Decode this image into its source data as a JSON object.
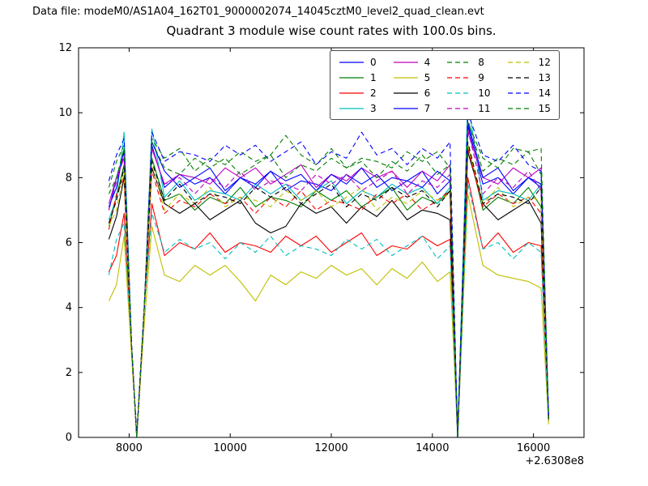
{
  "header": {
    "datafile_label": "Data file: modeM0/AS1A04_162T01_9000002074_14045cztM0_level2_quad_clean.evt"
  },
  "chart_data": {
    "type": "line",
    "title": "Quadrant 3 module wise count rates with 100.0s bins.",
    "xlabel": "",
    "ylabel": "",
    "x_offset_text": "+2.6308e8",
    "xlim": [
      7000,
      17000
    ],
    "ylim": [
      0,
      12
    ],
    "xticks": [
      8000,
      10000,
      12000,
      14000,
      16000
    ],
    "yticks": [
      0,
      2,
      4,
      6,
      8,
      10,
      12
    ],
    "grid": false,
    "legend_position": "upper right inside",
    "legend_columns": 4,
    "x": [
      7600,
      7750,
      7900,
      8050,
      8150,
      8300,
      8450,
      8700,
      9000,
      9300,
      9600,
      9900,
      10200,
      10500,
      10800,
      11100,
      11400,
      11700,
      12000,
      12300,
      12600,
      12900,
      13200,
      13500,
      13800,
      14100,
      14350,
      14500,
      14700,
      15000,
      15300,
      15600,
      15900,
      16150,
      16300
    ],
    "series": [
      {
        "name": "0",
        "color": "#0000ff",
        "linestyle": "solid",
        "values": [
          7.0,
          8.0,
          8.8,
          2.8,
          0.02,
          4.0,
          9.0,
          7.7,
          8.1,
          7.8,
          8.0,
          7.5,
          8.0,
          7.7,
          8.2,
          7.6,
          7.9,
          7.8,
          7.6,
          8.1,
          7.8,
          8.1,
          7.6,
          7.9,
          8.2,
          7.5,
          7.9,
          0.02,
          9.6,
          7.8,
          8.0,
          7.5,
          8.0,
          7.7,
          0.6
        ]
      },
      {
        "name": "1",
        "color": "#007f00",
        "linestyle": "solid",
        "values": [
          6.5,
          7.4,
          8.4,
          2.8,
          0.02,
          4.0,
          8.6,
          7.3,
          7.5,
          7.0,
          7.4,
          7.2,
          7.7,
          7.1,
          7.4,
          7.3,
          7.1,
          7.6,
          7.3,
          7.6,
          7.1,
          7.4,
          7.7,
          7.0,
          7.4,
          7.2,
          7.6,
          0.02,
          9.0,
          7.0,
          7.4,
          7.2,
          7.7,
          7.1,
          0.5
        ]
      },
      {
        "name": "2",
        "color": "#ff0000",
        "linestyle": "solid",
        "values": [
          5.1,
          5.6,
          6.9,
          2.8,
          0.02,
          4.0,
          7.2,
          5.6,
          6.0,
          5.8,
          6.3,
          5.7,
          6.0,
          5.9,
          5.7,
          6.2,
          5.9,
          6.2,
          5.7,
          6.0,
          6.3,
          5.6,
          5.9,
          5.8,
          6.2,
          5.9,
          6.1,
          0.02,
          8.0,
          5.8,
          6.3,
          5.7,
          6.0,
          5.9,
          0.5
        ]
      },
      {
        "name": "3",
        "color": "#00bfbf",
        "linestyle": "solid",
        "values": [
          6.7,
          7.4,
          9.4,
          2.8,
          0.02,
          4.0,
          9.5,
          7.4,
          7.9,
          7.3,
          7.6,
          7.5,
          7.3,
          7.8,
          7.5,
          7.8,
          7.3,
          7.6,
          7.9,
          7.2,
          7.6,
          7.4,
          7.8,
          7.5,
          7.7,
          7.2,
          7.7,
          0.02,
          10.4,
          7.3,
          7.6,
          7.5,
          7.3,
          7.8,
          0.6
        ]
      },
      {
        "name": "4",
        "color": "#bf00bf",
        "linestyle": "solid",
        "values": [
          7.2,
          8.0,
          8.6,
          2.8,
          0.02,
          4.0,
          8.9,
          7.8,
          8.1,
          8.0,
          7.8,
          8.3,
          8.0,
          8.3,
          7.8,
          8.1,
          8.4,
          7.7,
          8.1,
          7.9,
          8.3,
          8.0,
          8.2,
          7.7,
          8.2,
          7.9,
          8.4,
          0.02,
          9.4,
          8.0,
          7.8,
          8.3,
          8.0,
          8.3,
          0.6
        ]
      },
      {
        "name": "5",
        "color": "#bfbf00",
        "linestyle": "solid",
        "values": [
          4.2,
          4.7,
          6.2,
          2.5,
          0.02,
          3.5,
          6.5,
          5.0,
          4.8,
          5.3,
          5.0,
          5.3,
          4.8,
          4.2,
          5.0,
          4.7,
          5.1,
          4.9,
          5.3,
          5.0,
          5.2,
          4.7,
          5.2,
          4.9,
          5.4,
          4.8,
          5.1,
          0.02,
          7.5,
          5.3,
          5.0,
          4.9,
          4.8,
          4.6,
          0.4
        ]
      },
      {
        "name": "6",
        "color": "#000000",
        "linestyle": "solid",
        "values": [
          6.1,
          6.8,
          8.0,
          2.8,
          0.02,
          4.0,
          8.3,
          7.2,
          6.9,
          7.2,
          6.7,
          7.0,
          7.3,
          6.6,
          6.3,
          6.5,
          7.2,
          6.9,
          7.1,
          6.6,
          7.1,
          6.8,
          7.3,
          6.7,
          7.0,
          6.9,
          6.7,
          0.02,
          8.8,
          7.2,
          6.7,
          7.0,
          7.3,
          6.6,
          0.5
        ]
      },
      {
        "name": "7",
        "color": "#0000ff",
        "linestyle": "solid",
        "values": [
          7.1,
          7.7,
          8.9,
          2.8,
          0.02,
          4.0,
          9.1,
          8.2,
          7.7,
          8.0,
          8.3,
          7.6,
          8.0,
          7.8,
          8.2,
          7.9,
          8.1,
          7.6,
          8.1,
          7.8,
          8.3,
          7.7,
          8.0,
          7.9,
          7.7,
          8.2,
          7.9,
          0.02,
          9.7,
          8.0,
          8.3,
          7.6,
          8.0,
          7.8,
          0.6
        ]
      },
      {
        "name": "8",
        "color": "#007f00",
        "linestyle": "dashed",
        "values": [
          7.7,
          8.5,
          9.0,
          2.8,
          0.02,
          4.0,
          9.2,
          8.6,
          8.9,
          8.2,
          8.6,
          8.4,
          8.8,
          8.5,
          8.7,
          9.3,
          8.7,
          8.4,
          8.9,
          8.3,
          8.6,
          8.5,
          8.3,
          8.8,
          8.5,
          8.8,
          8.3,
          0.02,
          9.8,
          8.2,
          8.6,
          8.4,
          8.8,
          8.1,
          0.7
        ]
      },
      {
        "name": "9",
        "color": "#ff0000",
        "linestyle": "dashed",
        "values": [
          6.4,
          7.5,
          8.0,
          2.8,
          0.02,
          4.0,
          8.2,
          6.9,
          7.3,
          7.1,
          7.5,
          7.2,
          7.4,
          6.9,
          7.4,
          7.1,
          7.6,
          7.0,
          7.3,
          7.2,
          7.0,
          7.5,
          7.2,
          7.5,
          7.0,
          7.3,
          7.6,
          0.02,
          8.9,
          7.1,
          7.5,
          7.2,
          7.4,
          6.9,
          0.5
        ]
      },
      {
        "name": "10",
        "color": "#00bfbf",
        "linestyle": "dashed",
        "values": [
          5.0,
          6.1,
          6.6,
          2.8,
          0.02,
          4.0,
          6.9,
          5.7,
          6.1,
          5.8,
          6.0,
          5.5,
          6.0,
          5.7,
          6.2,
          5.6,
          5.9,
          5.8,
          5.6,
          6.1,
          5.8,
          6.1,
          5.6,
          5.9,
          6.2,
          5.5,
          5.9,
          0.02,
          7.8,
          5.8,
          6.0,
          5.5,
          6.0,
          5.7,
          0.4
        ]
      },
      {
        "name": "11",
        "color": "#bf00bf",
        "linestyle": "dashed",
        "values": [
          7.0,
          7.9,
          8.7,
          2.8,
          0.02,
          4.0,
          8.9,
          7.8,
          8.0,
          7.5,
          8.0,
          7.7,
          8.2,
          7.6,
          7.9,
          7.8,
          7.6,
          8.1,
          7.8,
          8.1,
          7.6,
          7.9,
          8.2,
          7.5,
          7.9,
          7.7,
          8.1,
          0.02,
          9.5,
          7.5,
          8.0,
          7.7,
          8.2,
          7.6,
          0.6
        ]
      },
      {
        "name": "12",
        "color": "#bfbf00",
        "linestyle": "dashed",
        "values": [
          6.5,
          7.0,
          8.2,
          2.8,
          0.02,
          4.0,
          8.4,
          7.0,
          7.5,
          7.2,
          7.7,
          7.1,
          7.4,
          7.3,
          7.1,
          7.6,
          7.3,
          7.6,
          7.1,
          7.4,
          7.7,
          7.0,
          7.4,
          7.2,
          7.6,
          7.3,
          7.5,
          0.02,
          9.0,
          7.2,
          7.7,
          7.1,
          7.4,
          7.3,
          0.5
        ]
      },
      {
        "name": "13",
        "color": "#000000",
        "linestyle": "dashed",
        "values": [
          6.6,
          7.3,
          8.3,
          2.8,
          0.02,
          4.0,
          8.5,
          7.3,
          7.8,
          7.2,
          7.5,
          7.4,
          7.2,
          7.7,
          7.4,
          7.7,
          7.2,
          7.5,
          7.8,
          7.1,
          7.5,
          7.3,
          7.7,
          7.4,
          7.6,
          7.1,
          7.6,
          0.02,
          9.1,
          7.2,
          7.5,
          7.4,
          7.2,
          7.7,
          0.5
        ]
      },
      {
        "name": "14",
        "color": "#0000ff",
        "linestyle": "dashed",
        "values": [
          7.9,
          8.7,
          9.2,
          2.8,
          0.02,
          4.0,
          9.4,
          8.5,
          8.8,
          8.7,
          8.5,
          9.0,
          8.7,
          9.0,
          8.5,
          8.8,
          9.1,
          8.4,
          8.8,
          8.6,
          9.4,
          8.7,
          8.9,
          8.4,
          8.9,
          8.6,
          9.1,
          0.02,
          10.0,
          8.7,
          8.5,
          9.0,
          8.4,
          8.2,
          0.7
        ]
      },
      {
        "name": "15",
        "color": "#007f00",
        "linestyle": "dashed",
        "values": [
          7.5,
          8.0,
          8.9,
          2.8,
          0.02,
          4.0,
          9.1,
          8.3,
          8.1,
          8.6,
          8.3,
          8.6,
          8.1,
          8.4,
          8.7,
          8.0,
          8.4,
          8.2,
          8.6,
          8.3,
          8.5,
          8.0,
          8.5,
          8.2,
          8.7,
          8.1,
          8.4,
          0.02,
          9.7,
          8.6,
          8.3,
          8.9,
          8.8,
          8.9,
          0.6
        ]
      }
    ]
  }
}
